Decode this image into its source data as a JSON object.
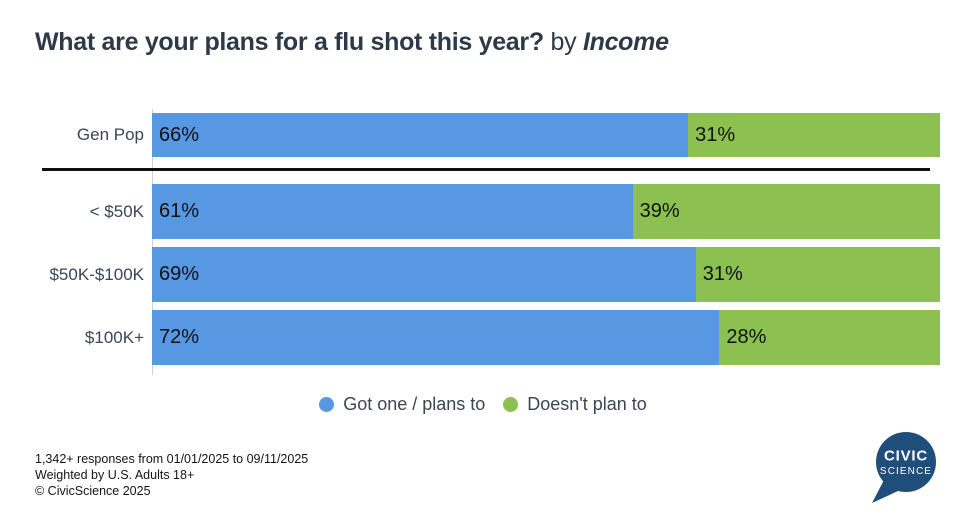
{
  "title": {
    "question": "What are your plans for a flu shot this year?",
    "connector": "by",
    "breakout": "Income"
  },
  "chart_data": {
    "type": "bar",
    "subtype": "stacked-horizontal-percent",
    "title": "What are your plans for a flu shot this year? by Income",
    "categories": [
      "Gen Pop",
      "< $50K",
      "$50K-$100K",
      "$100K+"
    ],
    "series": [
      {
        "name": "Got one / plans to",
        "color": "#5897e2",
        "values": [
          66,
          61,
          69,
          72
        ]
      },
      {
        "name": "Doesn't plan to",
        "color": "#8cc152",
        "values": [
          31,
          39,
          31,
          28
        ]
      }
    ],
    "value_suffix": "%",
    "xlim": [
      0,
      100
    ],
    "bars_normalized_to_row_total": true,
    "legend_position": "bottom",
    "grid": false,
    "separator_after_first_row": true
  },
  "footer": {
    "line1": "1,342+ responses from 01/01/2025 to 09/11/2025",
    "line2": "Weighted by U.S. Adults 18+",
    "line3": "© CivicScience 2025"
  },
  "logo": {
    "line1": "CIVIC",
    "line2": "SCIENCE",
    "bubble_color": "#1f4e7a"
  },
  "colors": {
    "blue": "#5897e2",
    "green": "#8cc152",
    "title_text": "#2e3947",
    "category_text": "#3a4654",
    "separator": "#101010",
    "axis_line": "#cfcfcf"
  }
}
